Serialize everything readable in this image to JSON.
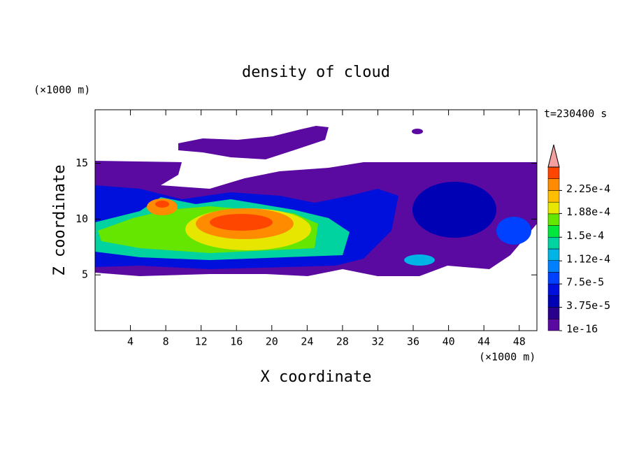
{
  "chart_data": {
    "type": "contour",
    "title": "density of cloud",
    "x_label": "X coordinate",
    "y_label": "Z coordinate",
    "x_unit": "(×1000 m)",
    "y_unit": "(×1000 m)",
    "time_label": "t=230400 s",
    "xlim": [
      0,
      50
    ],
    "xticks": [
      4,
      8,
      12,
      16,
      20,
      24,
      28,
      32,
      36,
      40,
      44,
      48
    ],
    "ylim": [
      0,
      19.8
    ],
    "yticks": [
      5,
      10,
      15
    ],
    "colorbar": {
      "clim": [
        1e-16,
        0.0002625
      ],
      "ticks": [
        {
          "value": 1e-16,
          "label": "1e-16"
        },
        {
          "value": 3.75e-05,
          "label": "3.75e-5"
        },
        {
          "value": 7.5e-05,
          "label": "7.5e-5"
        },
        {
          "value": 0.000112,
          "label": "1.12e-4"
        },
        {
          "value": 0.00015,
          "label": "1.5e-4"
        },
        {
          "value": 0.000188,
          "label": "1.88e-4"
        },
        {
          "value": 0.000225,
          "label": "2.25e-4"
        }
      ],
      "colors": [
        "#5a0aa0",
        "#28008c",
        "#0000b4",
        "#0010dc",
        "#0040ff",
        "#0080ff",
        "#00b4e6",
        "#00d2a0",
        "#00e63c",
        "#64e600",
        "#e6e600",
        "#ffbe00",
        "#ff8c00",
        "#ff4600"
      ],
      "extend_color": "#f4a0a0"
    }
  }
}
